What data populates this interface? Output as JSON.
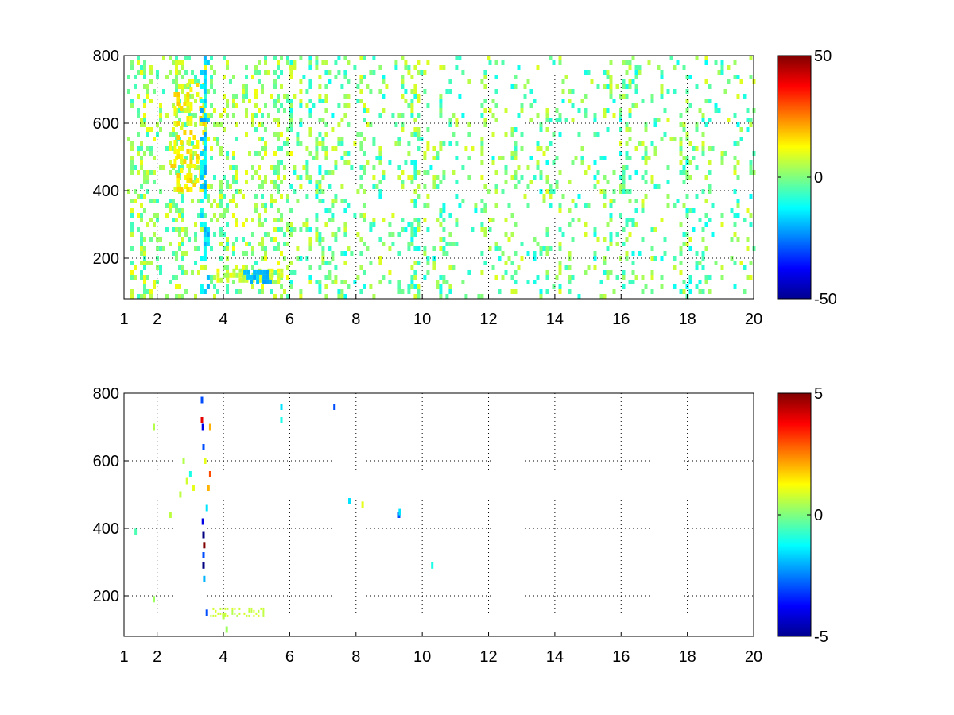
{
  "chart_data": [
    {
      "type": "heatmap",
      "x_ticks": [
        "1",
        "2",
        "4",
        "6",
        "8",
        "10",
        "12",
        "14",
        "16",
        "18",
        "20"
      ],
      "x_tick_values": [
        1,
        2,
        4,
        6,
        8,
        10,
        12,
        14,
        16,
        18,
        20
      ],
      "y_ticks": [
        "200",
        "400",
        "600",
        "800"
      ],
      "y_tick_values": [
        200,
        400,
        600,
        800
      ],
      "xlim": [
        1,
        20
      ],
      "ylim": [
        80,
        800
      ],
      "grid": true,
      "colormap": "jet",
      "colorbar": {
        "ticks": [
          "50",
          "0",
          "-50"
        ],
        "tick_values": [
          50,
          0,
          -50
        ],
        "clim": [
          -50,
          50
        ]
      },
      "features": [
        {
          "x": [
            1.0,
            6.0
          ],
          "y": [
            80,
            800
          ],
          "density": 0.5,
          "value_range": [
            -8,
            12
          ]
        },
        {
          "x": [
            6.0,
            12.0
          ],
          "y": [
            80,
            800
          ],
          "density": 0.35,
          "value_range": [
            -12,
            10
          ]
        },
        {
          "x": [
            12.0,
            20.0
          ],
          "y": [
            80,
            800
          ],
          "density": 0.28,
          "value_range": [
            -12,
            10
          ]
        },
        {
          "x": [
            2.4,
            3.4
          ],
          "y": [
            400,
            720
          ],
          "density": 0.7,
          "value_range": [
            8,
            18
          ]
        },
        {
          "x": [
            3.3,
            3.5
          ],
          "y": [
            100,
            800
          ],
          "density": 0.8,
          "value_range": [
            -22,
            -10
          ]
        },
        {
          "x": [
            3.6,
            5.8
          ],
          "y": [
            130,
            170
          ],
          "density": 0.85,
          "value_range": [
            2,
            12
          ]
        },
        {
          "x": [
            4.6,
            5.4
          ],
          "y": [
            135,
            165
          ],
          "density": 0.95,
          "value_range": [
            -22,
            -15
          ]
        }
      ]
    },
    {
      "type": "heatmap",
      "x_ticks": [
        "1",
        "2",
        "4",
        "6",
        "8",
        "10",
        "12",
        "14",
        "16",
        "18",
        "20"
      ],
      "x_tick_values": [
        1,
        2,
        4,
        6,
        8,
        10,
        12,
        14,
        16,
        18,
        20
      ],
      "y_ticks": [
        "200",
        "400",
        "600",
        "800"
      ],
      "y_tick_values": [
        200,
        400,
        600,
        800
      ],
      "xlim": [
        1,
        20
      ],
      "ylim": [
        80,
        800
      ],
      "grid": true,
      "colormap": "jet",
      "colorbar": {
        "ticks": [
          "5",
          "0",
          "-5"
        ],
        "tick_values": [
          5,
          0,
          -5
        ],
        "clim": [
          -5,
          5
        ]
      },
      "points": [
        {
          "x": 3.35,
          "y": 780,
          "v": -3
        },
        {
          "x": 3.35,
          "y": 720,
          "v": 4
        },
        {
          "x": 3.38,
          "y": 700,
          "v": -4
        },
        {
          "x": 3.4,
          "y": 640,
          "v": -3
        },
        {
          "x": 3.45,
          "y": 600,
          "v": 1
        },
        {
          "x": 3.6,
          "y": 560,
          "v": 3
        },
        {
          "x": 3.38,
          "y": 420,
          "v": -4
        },
        {
          "x": 3.4,
          "y": 380,
          "v": -5
        },
        {
          "x": 3.42,
          "y": 350,
          "v": 5
        },
        {
          "x": 3.4,
          "y": 320,
          "v": -3
        },
        {
          "x": 3.4,
          "y": 290,
          "v": -5
        },
        {
          "x": 3.42,
          "y": 250,
          "v": -2
        },
        {
          "x": 3.6,
          "y": 700,
          "v": 2
        },
        {
          "x": 3.1,
          "y": 520,
          "v": 1
        },
        {
          "x": 2.9,
          "y": 540,
          "v": 0.8
        },
        {
          "x": 2.7,
          "y": 500,
          "v": 0.6
        },
        {
          "x": 3.0,
          "y": 560,
          "v": -1
        },
        {
          "x": 2.8,
          "y": 600,
          "v": 0.5
        },
        {
          "x": 3.5,
          "y": 460,
          "v": -1.5
        },
        {
          "x": 3.55,
          "y": 520,
          "v": 2
        },
        {
          "x": 5.75,
          "y": 760,
          "v": -1.5
        },
        {
          "x": 5.75,
          "y": 720,
          "v": -1
        },
        {
          "x": 7.35,
          "y": 760,
          "v": -3
        },
        {
          "x": 7.8,
          "y": 480,
          "v": -1.5
        },
        {
          "x": 8.2,
          "y": 470,
          "v": 1
        },
        {
          "x": 9.3,
          "y": 440,
          "v": -3
        },
        {
          "x": 9.32,
          "y": 448,
          "v": -1.5
        },
        {
          "x": 10.3,
          "y": 290,
          "v": -1
        },
        {
          "x": 1.35,
          "y": 390,
          "v": -0.5
        },
        {
          "x": 1.9,
          "y": 700,
          "v": 0.5
        },
        {
          "x": 1.9,
          "y": 190,
          "v": 0.3
        },
        {
          "x": 2.4,
          "y": 440,
          "v": 0.6
        },
        {
          "x": 3.5,
          "y": 150,
          "v": -3
        },
        {
          "x": 4.0,
          "y": 140,
          "v": 0.5
        },
        {
          "x": 4.1,
          "y": 100,
          "v": 0.3
        }
      ],
      "segments": [
        {
          "x": [
            3.6,
            5.2
          ],
          "y": [
            140,
            165
          ],
          "v": 0.7
        }
      ]
    }
  ]
}
